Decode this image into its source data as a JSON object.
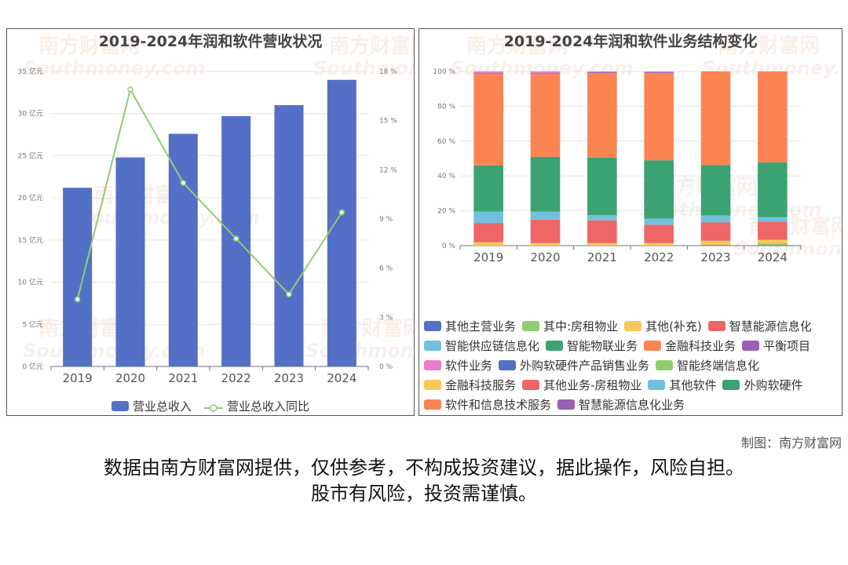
{
  "footer": {
    "maker": "制图：南方财富网",
    "disclaimer_line1": "数据由南方财富网提供，仅供参考，不构成投资建议，据此操作，风险自担。",
    "disclaimer_line2": "股市有风险，投资需谨慎。"
  },
  "watermark": {
    "cn": "南方财富网",
    "en": "Southmoney.com"
  },
  "chart_data": [
    {
      "type": "bar",
      "title": "2019-2024年润和软件营收状况",
      "categories": [
        "2019",
        "2020",
        "2021",
        "2022",
        "2023",
        "2024"
      ],
      "y_left": {
        "ticks": [
          "0 亿元",
          "5 亿元",
          "10 亿元",
          "15 亿元",
          "20 亿元",
          "25 亿元",
          "30 亿元",
          "35 亿元"
        ],
        "min": 0,
        "max": 35
      },
      "y_right": {
        "ticks": [
          "0 %",
          "3 %",
          "6 %",
          "9 %",
          "12 %",
          "15 %",
          "18 %"
        ],
        "min": 0,
        "max": 18
      },
      "series": [
        {
          "name": "营业总收入",
          "type": "bar",
          "axis": "left",
          "color": "#5470c6",
          "values": [
            21.2,
            24.8,
            27.6,
            29.7,
            31.0,
            34.0
          ]
        },
        {
          "name": "营业总收入同比",
          "type": "line",
          "axis": "right",
          "color": "#91cc75",
          "values": [
            4.1,
            16.9,
            11.2,
            7.8,
            4.4,
            9.4
          ]
        }
      ],
      "legend_position": "bottom",
      "grid": true
    },
    {
      "type": "bar",
      "stacked": true,
      "title": "2019-2024年润和软件业务结构变化",
      "categories": [
        "2019",
        "2020",
        "2021",
        "2022",
        "2023",
        "2024"
      ],
      "y_ticks": [
        "0 %",
        "20 %",
        "40 %",
        "60 %",
        "80 %",
        "100 %"
      ],
      "ylim": [
        0,
        100
      ],
      "series": [
        {
          "name": "其他主营业务",
          "color": "#5470c6",
          "values": [
            0,
            0,
            0,
            0,
            0.3,
            0.3
          ]
        },
        {
          "name": "其中:房租物业",
          "color": "#91cc75",
          "values": [
            0,
            0,
            0,
            0,
            0,
            1.0
          ]
        },
        {
          "name": "其他(补充)",
          "color": "#fac858",
          "values": [
            2.0,
            1.5,
            1.5,
            1.5,
            2.5,
            2.0
          ]
        },
        {
          "name": "智慧能源信息化",
          "color": "#ee6666",
          "values": [
            11.0,
            13.5,
            13.0,
            10.5,
            10.5,
            10.5
          ]
        },
        {
          "name": "智能供应链信息化",
          "color": "#73c0de",
          "values": [
            6.5,
            4.5,
            3.0,
            3.5,
            4.0,
            2.5
          ]
        },
        {
          "name": "智能物联业务",
          "color": "#3ba272",
          "values": [
            26.5,
            31.5,
            33.0,
            33.5,
            29.0,
            31.5
          ]
        },
        {
          "name": "金融科技业务",
          "color": "#fc8452",
          "values": [
            52.5,
            47.5,
            48.5,
            50.0,
            53.7,
            52.2
          ]
        },
        {
          "name": "平衡项目",
          "color": "#9a60b4",
          "values": [
            0.5,
            0.5,
            0.5,
            0.5,
            0,
            0
          ]
        },
        {
          "name": "软件业务",
          "color": "#ea7ccc",
          "values": [
            1.0,
            1.0,
            0.5,
            0.5,
            0,
            0
          ]
        },
        {
          "name": "外购软硬件产品销售业务",
          "color": "#5470c6",
          "values": [
            0,
            0,
            0,
            0,
            0,
            0
          ]
        },
        {
          "name": "智能终端信息化",
          "color": "#91cc75",
          "values": [
            0,
            0,
            0,
            0,
            0,
            0
          ]
        },
        {
          "name": "金融科技服务",
          "color": "#fac858",
          "values": [
            0,
            0,
            0,
            0,
            0,
            0
          ]
        },
        {
          "name": "其他业务-房租物业",
          "color": "#ee6666",
          "values": [
            0,
            0,
            0,
            0,
            0,
            0
          ]
        },
        {
          "name": "其他软件",
          "color": "#73c0de",
          "values": [
            0,
            0,
            0,
            0,
            0,
            0
          ]
        },
        {
          "name": "外购软硬件",
          "color": "#3ba272",
          "values": [
            0,
            0,
            0,
            0,
            0,
            0
          ]
        },
        {
          "name": "软件和信息技术服务",
          "color": "#fc8452",
          "values": [
            0,
            0,
            0,
            0,
            0,
            0
          ]
        },
        {
          "name": "智慧能源信息化业务",
          "color": "#9a60b4",
          "values": [
            0,
            0,
            0,
            0,
            0,
            0
          ]
        }
      ],
      "legend_rows": [
        [
          0,
          1,
          2,
          3
        ],
        [
          4,
          5,
          6,
          7
        ],
        [
          8,
          9,
          10
        ],
        [
          11,
          12,
          13,
          14
        ],
        [
          15,
          16
        ]
      ],
      "legend_position": "bottom",
      "grid": true
    }
  ]
}
